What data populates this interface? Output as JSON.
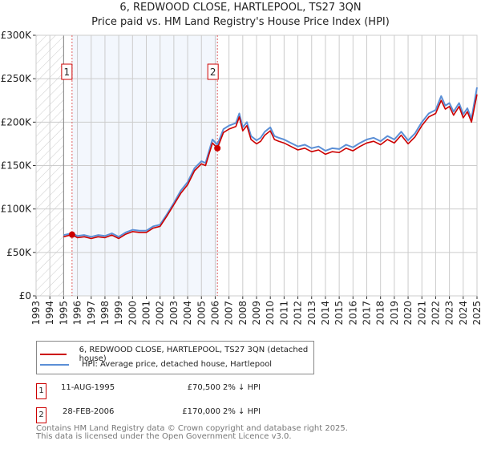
{
  "chart_data": {
    "type": "line",
    "title": "6, REDWOOD CLOSE, HARTLEPOOL, TS27 3QN",
    "subtitle": "Price paid vs. HM Land Registry's House Price Index (HPI)",
    "xlim": [
      1993,
      2025
    ],
    "ylim": [
      0,
      300000
    ],
    "x_ticks": [
      "1993",
      "1994",
      "1995",
      "1996",
      "1997",
      "1998",
      "1999",
      "2000",
      "2001",
      "2002",
      "2003",
      "2004",
      "2005",
      "2006",
      "2007",
      "2008",
      "2009",
      "2010",
      "2011",
      "2012",
      "2013",
      "2014",
      "2015",
      "2016",
      "2017",
      "2018",
      "2019",
      "2020",
      "2021",
      "2022",
      "2023",
      "2024",
      "2025"
    ],
    "y_ticks": [
      {
        "v": 0,
        "label": "£0"
      },
      {
        "v": 50000,
        "label": "£50K"
      },
      {
        "v": 100000,
        "label": "£100K"
      },
      {
        "v": 150000,
        "label": "£150K"
      },
      {
        "v": 200000,
        "label": "£200K"
      },
      {
        "v": 250000,
        "label": "£250K"
      },
      {
        "v": 300000,
        "label": "£300K"
      }
    ],
    "grid": true,
    "series": [
      {
        "name": "6, REDWOOD CLOSE, HARTLEPOOL, TS27 3QN (detached house)",
        "color": "#cc0000",
        "x": [
          1995.0,
          1995.6,
          1996,
          1996.5,
          1997,
          1997.5,
          1998,
          1998.5,
          1999,
          1999.5,
          2000,
          2000.5,
          2001,
          2001.5,
          2002,
          2002.5,
          2003,
          2003.5,
          2004,
          2004.5,
          2005,
          2005.3,
          2005.8,
          2006.16,
          2006.6,
          2007,
          2007.5,
          2007.75,
          2008,
          2008.3,
          2008.6,
          2009,
          2009.3,
          2009.6,
          2010,
          2010.3,
          2010.6,
          2011,
          2011.5,
          2012,
          2012.5,
          2013,
          2013.5,
          2014,
          2014.5,
          2015,
          2015.5,
          2016,
          2016.5,
          2017,
          2017.5,
          2018,
          2018.5,
          2019,
          2019.5,
          2020,
          2020.5,
          2021,
          2021.5,
          2022,
          2022.4,
          2022.7,
          2023,
          2023.3,
          2023.7,
          2024,
          2024.3,
          2024.6,
          2025
        ],
        "y": [
          68000,
          70500,
          67000,
          68000,
          66000,
          68000,
          67000,
          70000,
          66000,
          71000,
          74000,
          73000,
          73000,
          78000,
          80000,
          92000,
          105000,
          118000,
          128000,
          144000,
          152000,
          150000,
          176000,
          170000,
          188000,
          192000,
          195000,
          206000,
          190000,
          196000,
          180000,
          175000,
          178000,
          185000,
          190000,
          180000,
          178000,
          176000,
          172000,
          168000,
          170000,
          166000,
          168000,
          163000,
          166000,
          165000,
          170000,
          167000,
          172000,
          176000,
          178000,
          174000,
          180000,
          176000,
          185000,
          175000,
          183000,
          196000,
          206000,
          210000,
          225000,
          215000,
          218000,
          208000,
          218000,
          205000,
          212000,
          200000,
          232000
        ]
      },
      {
        "name": "HPI: Average price, detached house, Hartlepool",
        "color": "#5b8fd6",
        "x": [
          1995.0,
          1995.6,
          1996,
          1996.5,
          1997,
          1997.5,
          1998,
          1998.5,
          1999,
          1999.5,
          2000,
          2000.5,
          2001,
          2001.5,
          2002,
          2002.5,
          2003,
          2003.5,
          2004,
          2004.5,
          2005,
          2005.3,
          2005.8,
          2006.16,
          2006.6,
          2007,
          2007.5,
          2007.75,
          2008,
          2008.3,
          2008.6,
          2009,
          2009.3,
          2009.6,
          2010,
          2010.3,
          2010.6,
          2011,
          2011.5,
          2012,
          2012.5,
          2013,
          2013.5,
          2014,
          2014.5,
          2015,
          2015.5,
          2016,
          2016.5,
          2017,
          2017.5,
          2018,
          2018.5,
          2019,
          2019.5,
          2020,
          2020.5,
          2021,
          2021.5,
          2022,
          2022.4,
          2022.7,
          2023,
          2023.3,
          2023.7,
          2024,
          2024.3,
          2024.6,
          2025
        ],
        "y": [
          70000,
          72000,
          69000,
          70000,
          68000,
          70000,
          69000,
          72000,
          68000,
          73000,
          76000,
          75000,
          75000,
          80000,
          82000,
          94000,
          107000,
          121000,
          131000,
          147000,
          155000,
          153000,
          180000,
          174000,
          192000,
          196000,
          199000,
          210000,
          194000,
          200000,
          184000,
          179000,
          182000,
          189000,
          194000,
          184000,
          182000,
          180000,
          176000,
          172000,
          174000,
          170000,
          172000,
          167000,
          170000,
          169000,
          174000,
          171000,
          176000,
          180000,
          182000,
          178000,
          184000,
          180000,
          189000,
          179000,
          187000,
          200000,
          210000,
          214000,
          230000,
          219000,
          222000,
          212000,
          222000,
          209000,
          216000,
          204000,
          240000
        ]
      }
    ],
    "sales": [
      {
        "label": "1",
        "x": 1995.61,
        "price": 70500
      },
      {
        "label": "2",
        "x": 2006.16,
        "price": 170000
      }
    ]
  },
  "legend": {
    "red": "6, REDWOOD CLOSE, HARTLEPOOL, TS27 3QN (detached house)",
    "blue": "HPI: Average price, detached house, Hartlepool"
  },
  "table": [
    {
      "num": "1",
      "date": "11-AUG-1995",
      "price": "£70,500",
      "hpi": "2% ↓ HPI"
    },
    {
      "num": "2",
      "date": "28-FEB-2006",
      "price": "£170,000",
      "hpi": "2% ↓ HPI"
    }
  ],
  "footer": {
    "line1": "Contains HM Land Registry data © Crown copyright and database right 2025.",
    "line2": "This data is licensed under the Open Government Licence v3.0."
  }
}
